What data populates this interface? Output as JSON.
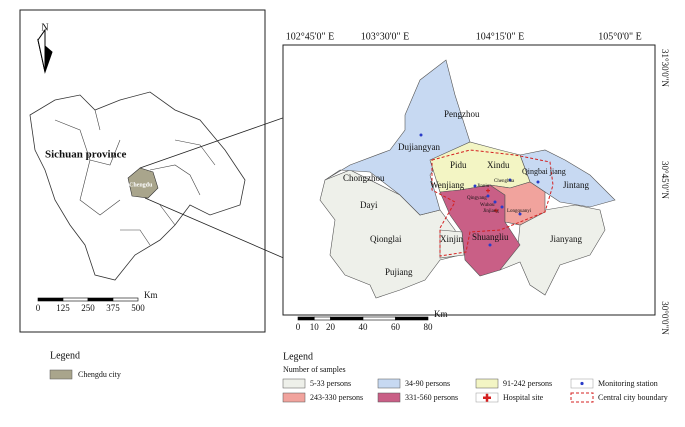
{
  "north_label": "N",
  "province_label": "Sichuan province",
  "city_label": "Chengdu",
  "left_scale": {
    "ticks": [
      0,
      125,
      250,
      375,
      500
    ],
    "unit": "Km"
  },
  "right_scale": {
    "ticks": [
      0,
      10,
      20,
      40,
      60,
      80
    ],
    "unit": "Km"
  },
  "longitudes": [
    "102°45'0\" E",
    "103°30'0\" E",
    "104°15'0\" E",
    "105°0'0\" E"
  ],
  "latitudes": [
    "31°30'0\"N",
    "30°45'0\"N",
    "30°0'0\"N"
  ],
  "districts": [
    "Pengzhou",
    "Dujiangyan",
    "Pidu",
    "Xindu",
    "Qingbai jiang",
    "Chongzhou",
    "Wenjiang",
    "Jintang",
    "Dayi",
    "Xinjin",
    "Shuangliu",
    "Qionglai",
    "Jianyang",
    "Pujiang",
    "Longquanyi",
    "Chenghua",
    "Jinniu",
    "Qingyang",
    "Wuhou",
    "Jinjiang"
  ],
  "legend_left": {
    "title": "Legend",
    "items": [
      {
        "label": "Chengdu city",
        "color": "#a9a58c"
      }
    ]
  },
  "legend_right": {
    "title": "Legend",
    "subtitle": "Number of samples",
    "items": [
      {
        "label": "5-33 persons",
        "color": "#eef0ea",
        "kind": "swatch"
      },
      {
        "label": "34-90 persons",
        "color": "#c7d9f2",
        "kind": "swatch"
      },
      {
        "label": "91-242 persons",
        "color": "#f3f5c4",
        "kind": "swatch"
      },
      {
        "label": "Monitoring station",
        "color": "#2a3cc8",
        "kind": "point"
      },
      {
        "label": "243-330 persons",
        "color": "#f1a39d",
        "kind": "swatch"
      },
      {
        "label": "331-560 persons",
        "color": "#c95f86",
        "kind": "swatch"
      },
      {
        "label": "Hospital site",
        "color": "#d42020",
        "kind": "cross"
      },
      {
        "label": "Central city boundary",
        "color": "#d42020",
        "kind": "dashed"
      }
    ]
  }
}
